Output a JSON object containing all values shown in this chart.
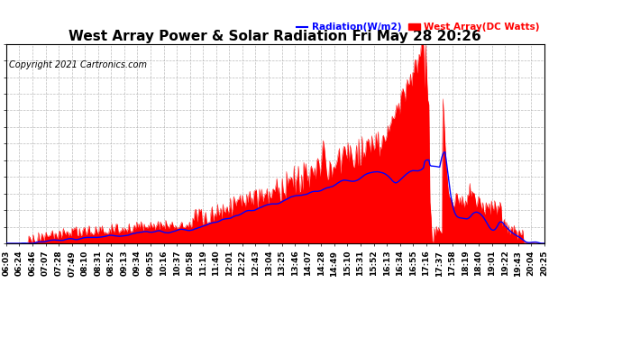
{
  "title": "West Array Power & Solar Radiation Fri May 28 20:26",
  "copyright": "Copyright 2021 Cartronics.com",
  "legend_radiation": "Radiation(W/m2)",
  "legend_west_array": "West Array(DC Watts)",
  "ylim": [
    0.0,
    833.5
  ],
  "yticks": [
    0.0,
    69.5,
    138.9,
    208.4,
    277.8,
    347.3,
    416.8,
    486.2,
    555.7,
    625.2,
    694.6,
    764.1,
    833.5
  ],
  "x_labels": [
    "06:03",
    "06:24",
    "06:46",
    "07:07",
    "07:28",
    "07:49",
    "08:10",
    "08:31",
    "08:52",
    "09:13",
    "09:34",
    "09:55",
    "10:16",
    "10:37",
    "10:58",
    "11:19",
    "11:40",
    "12:01",
    "12:22",
    "12:43",
    "13:04",
    "13:25",
    "13:46",
    "14:07",
    "14:28",
    "14:49",
    "15:10",
    "15:31",
    "15:52",
    "16:13",
    "16:34",
    "16:55",
    "17:16",
    "17:37",
    "17:58",
    "18:19",
    "18:40",
    "19:01",
    "19:22",
    "19:43",
    "20:04",
    "20:25"
  ],
  "background_color": "#ffffff",
  "grid_color": "#aaaaaa",
  "fill_color": "#ff0000",
  "line_color_radiation": "#0000ff",
  "title_color": "#000000",
  "title_fontsize": 11,
  "axis_fontsize": 6.5,
  "copyright_fontsize": 7
}
